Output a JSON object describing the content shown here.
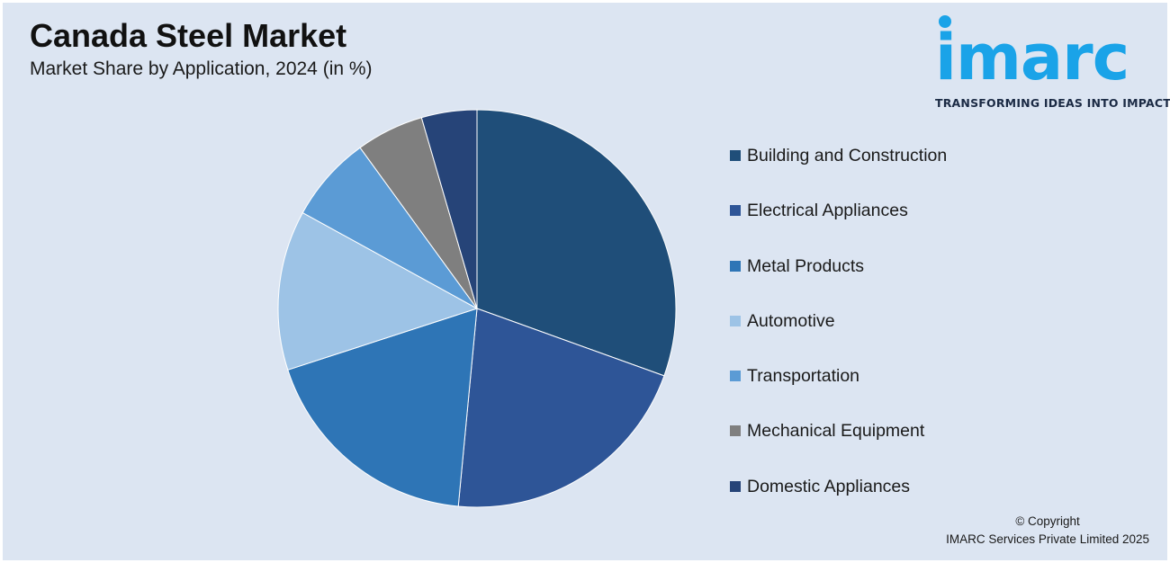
{
  "header": {
    "title": "Canada Steel Market",
    "subtitle": "Market Share by Application, 2024 (in %)"
  },
  "logo": {
    "wordmark": "imarc",
    "tagline": "TRANSFORMING IDEAS INTO IMPACT",
    "color": "#1aa3e8"
  },
  "chart_data": {
    "type": "pie",
    "title": "Canada Steel Market",
    "subtitle": "Market Share by Application, 2024 (in %)",
    "legend_position": "right",
    "categories": [
      "Building and Construction",
      "Electrical Appliances",
      "Metal Products",
      "Automotive",
      "Transportation",
      "Mechanical Equipment",
      "Domestic Appliances"
    ],
    "values": [
      30.5,
      21,
      18.5,
      13,
      7,
      5.5,
      4.5
    ],
    "colors": [
      "#1f4e79",
      "#2e5597",
      "#2e75b6",
      "#9dc3e6",
      "#5b9bd5",
      "#7f7f7f",
      "#264478"
    ]
  },
  "footer": {
    "copyright_line1": "© Copyright",
    "copyright_line2": "IMARC Services Private Limited 2025"
  }
}
